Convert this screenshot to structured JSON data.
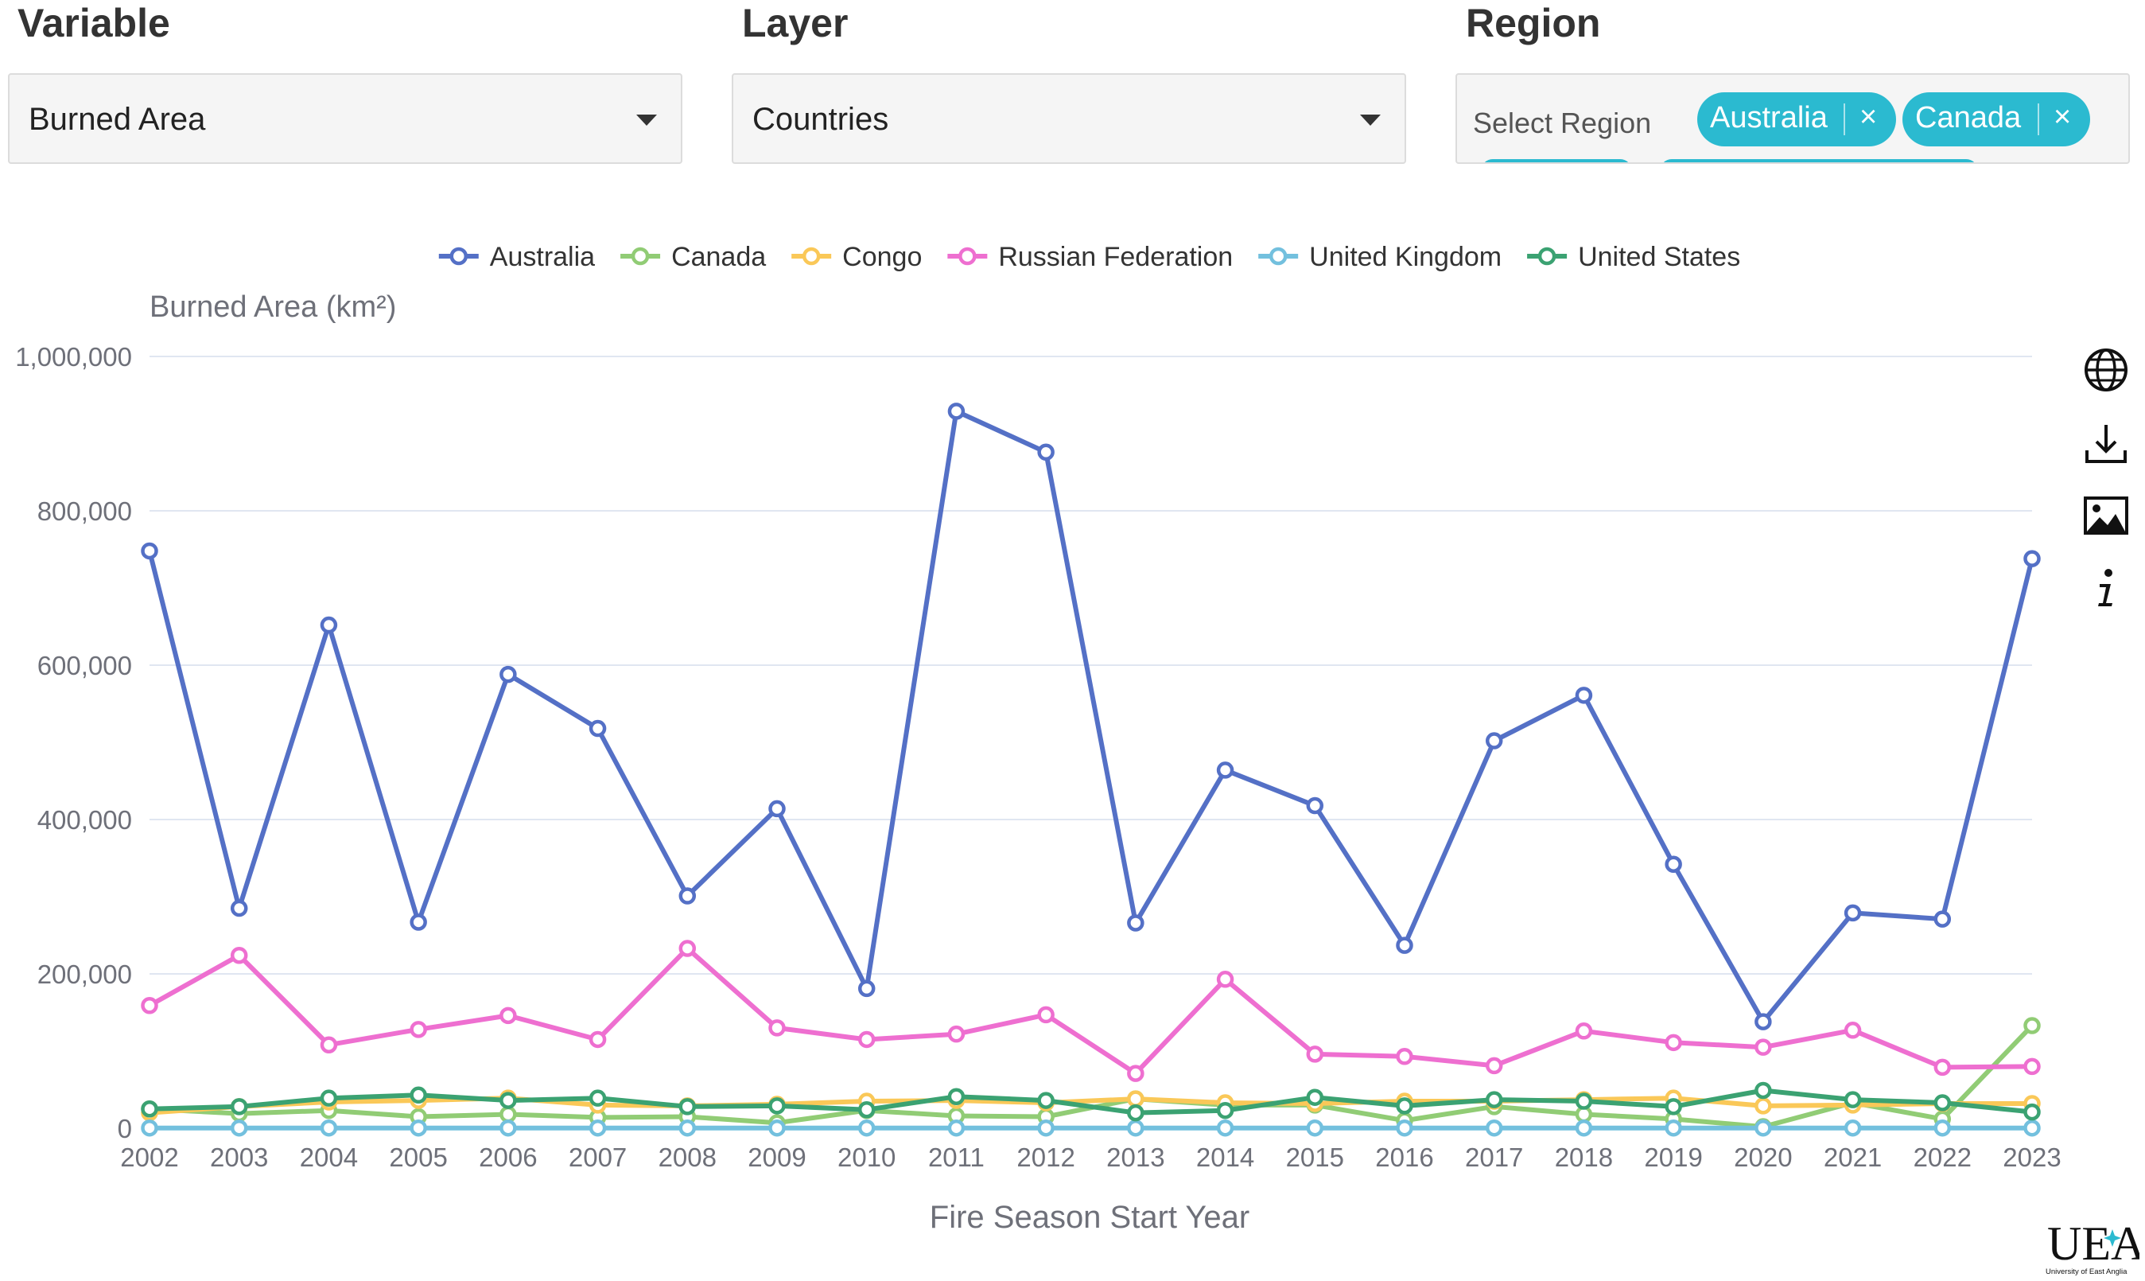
{
  "controls": {
    "variable": {
      "label": "Variable",
      "value": "Burned Area"
    },
    "layer": {
      "label": "Layer",
      "value": "Countries"
    },
    "region": {
      "label": "Region",
      "placeholder": "Select Region",
      "chips": [
        "Australia",
        "Canada"
      ],
      "chip_remove": "×"
    }
  },
  "toolbox": {
    "icons": [
      "globe-icon",
      "download-icon",
      "image-icon",
      "info-icon"
    ]
  },
  "logo": {
    "text": "UEA",
    "subtext": "University of East Anglia"
  },
  "chart_data": {
    "type": "line",
    "ylabel": "Burned Area (km²)",
    "xlabel": "Fire Season Start Year",
    "ylim": [
      0,
      1000000
    ],
    "yticks": [
      0,
      200000,
      400000,
      600000,
      800000,
      1000000
    ],
    "ytick_labels": [
      "0",
      "200,000",
      "400,000",
      "600,000",
      "800,000",
      "1,000,000"
    ],
    "legend_position": "top-center",
    "grid": true,
    "x": [
      "2002",
      "2003",
      "2004",
      "2005",
      "2006",
      "2007",
      "2008",
      "2009",
      "2010",
      "2011",
      "2012",
      "2013",
      "2014",
      "2015",
      "2016",
      "2017",
      "2018",
      "2019",
      "2020",
      "2021",
      "2022",
      "2023"
    ],
    "series": [
      {
        "name": "Australia",
        "color": "#5470c6",
        "values": [
          748000,
          285000,
          652000,
          267000,
          588000,
          518000,
          301000,
          414000,
          181000,
          929000,
          876000,
          266000,
          464000,
          418000,
          237000,
          502000,
          561000,
          342000,
          138000,
          279000,
          271000,
          738000
        ]
      },
      {
        "name": "Canada",
        "color": "#91cc75",
        "values": [
          25000,
          19000,
          23000,
          15000,
          18000,
          14000,
          15000,
          7000,
          23000,
          16000,
          15000,
          38000,
          30000,
          30000,
          10000,
          28000,
          18000,
          12000,
          2000,
          33000,
          12000,
          133000
        ]
      },
      {
        "name": "Congo",
        "color": "#fac858",
        "values": [
          20000,
          28000,
          34000,
          36000,
          39000,
          30000,
          29000,
          31000,
          35000,
          36000,
          33000,
          38000,
          33000,
          32000,
          35000,
          35000,
          37000,
          39000,
          29000,
          30000,
          32000,
          32000
        ]
      },
      {
        "name": "Russian Federation",
        "color": "#ee6fd0",
        "values": [
          159000,
          224000,
          108000,
          128000,
          146000,
          115000,
          233000,
          130000,
          115000,
          122000,
          147000,
          71000,
          193000,
          96000,
          93000,
          81000,
          126000,
          111000,
          105000,
          127000,
          79000,
          80000
        ]
      },
      {
        "name": "United Kingdom",
        "color": "#73c0de",
        "values": [
          300,
          300,
          300,
          300,
          300,
          300,
          300,
          300,
          300,
          300,
          300,
          300,
          300,
          300,
          300,
          300,
          300,
          300,
          300,
          300,
          300,
          300
        ]
      },
      {
        "name": "United States",
        "color": "#3ba272",
        "values": [
          25000,
          28000,
          39000,
          43000,
          36000,
          39000,
          28000,
          29000,
          24000,
          41000,
          36000,
          20000,
          23000,
          40000,
          29000,
          37000,
          35000,
          28000,
          49000,
          37000,
          33000,
          21000
        ]
      }
    ]
  }
}
